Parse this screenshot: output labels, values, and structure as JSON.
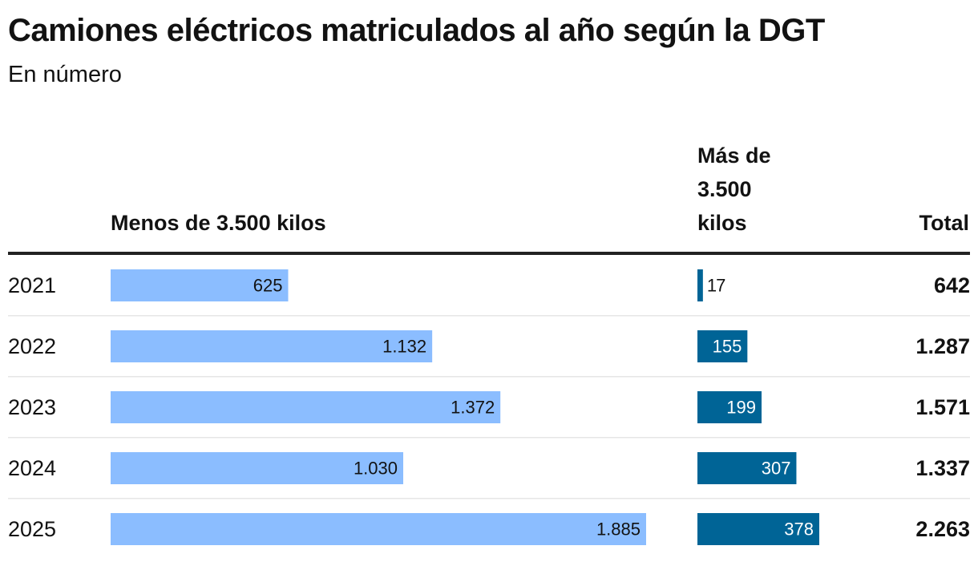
{
  "chart_data": {
    "type": "table",
    "title": "Camiones eléctricos matriculados al año según la DGT",
    "subtitle": "En número",
    "columns": {
      "year": "",
      "light": "Menos de 3.500 kilos",
      "heavy": "Más de 3.500 kilos",
      "total": "Total"
    },
    "header_lines": {
      "heavy": [
        "Más de",
        "3.500",
        "kilos"
      ]
    },
    "colors": {
      "light": "#8bbdff",
      "heavy": "#006496",
      "divider": "#e6e6e6",
      "text": "#121212"
    },
    "rows": [
      {
        "year": "2021",
        "light": 625,
        "light_label": "625",
        "heavy": 17,
        "heavy_label": "17",
        "total_label": "642"
      },
      {
        "year": "2022",
        "light": 1132,
        "light_label": "1.132",
        "heavy": 155,
        "heavy_label": "155",
        "total_label": "1.287"
      },
      {
        "year": "2023",
        "light": 1372,
        "light_label": "1.372",
        "heavy": 199,
        "heavy_label": "199",
        "total_label": "1.571"
      },
      {
        "year": "2024",
        "light": 1030,
        "light_label": "1.030",
        "heavy": 307,
        "heavy_label": "307",
        "total_label": "1.337"
      },
      {
        "year": "2025",
        "light": 1885,
        "light_label": "1.885",
        "heavy": 378,
        "heavy_label": "378",
        "total_label": "2.263"
      }
    ]
  }
}
